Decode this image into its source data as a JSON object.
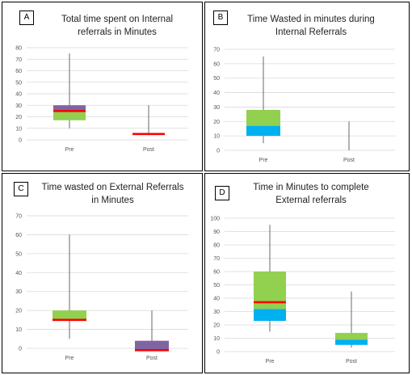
{
  "chart_data": [
    {
      "type": "boxplot",
      "panel_label": "A",
      "title": "Total time spent on Internal\nreferrals in Minutes",
      "ylim": [
        0,
        80
      ],
      "yticks": [
        0,
        10,
        20,
        30,
        40,
        50,
        60,
        70,
        80
      ],
      "categories": [
        "Pre",
        "Post"
      ],
      "boxes": [
        {
          "category": "Pre",
          "min": 10,
          "q1": 17,
          "median": 25,
          "q3": 30,
          "max": 75,
          "lower_color": "#92D050",
          "upper_color": "#8064A2",
          "median_color": "#FF0000"
        },
        {
          "category": "Post",
          "min": 4,
          "q1": 5,
          "median": 5,
          "q3": 6,
          "max": 30,
          "lower_color": "#92D050",
          "upper_color": "#8064A2",
          "median_color": "#FF0000"
        }
      ]
    },
    {
      "type": "boxplot",
      "panel_label": "B",
      "title": "Time Wasted in minutes during\nInternal Referrals",
      "ylim": [
        0,
        70
      ],
      "yticks": [
        0,
        10,
        20,
        30,
        40,
        50,
        60,
        70
      ],
      "categories": [
        "Pre",
        "Post"
      ],
      "boxes": [
        {
          "category": "Pre",
          "min": 5,
          "q1": 10,
          "median": 17,
          "q3": 28,
          "max": 65,
          "lower_color": "#00B0F0",
          "upper_color": "#92D050",
          "median_color": null
        },
        {
          "category": "Post",
          "min": 0,
          "q1": 0,
          "median": 0,
          "q3": 0,
          "max": 20,
          "lower_color": "#00B0F0",
          "upper_color": "#92D050",
          "median_color": null
        }
      ]
    },
    {
      "type": "boxplot",
      "panel_label": "C",
      "title": "Time wasted on External Referrals\nin Minutes",
      "ylim": [
        0,
        70
      ],
      "yticks": [
        0,
        10,
        20,
        30,
        40,
        50,
        60,
        70
      ],
      "categories": [
        "Pre",
        "Post"
      ],
      "boxes": [
        {
          "category": "Pre",
          "min": 5,
          "q1": 15,
          "median": 15,
          "q3": 20,
          "max": 60,
          "lower_color": "#92D050",
          "upper_color": "#92D050",
          "median_color": "#FF0000"
        },
        {
          "category": "Post",
          "min": -1,
          "q1": -1,
          "median": -1,
          "q3": 4,
          "max": 20,
          "lower_color": "#8064A2",
          "upper_color": "#8064A2",
          "median_color": "#FF0000"
        }
      ]
    },
    {
      "type": "boxplot",
      "panel_label": "D",
      "title": "Time in Minutes to complete\nExternal referrals",
      "ylim": [
        0,
        100
      ],
      "yticks": [
        0,
        10,
        20,
        30,
        40,
        50,
        60,
        70,
        80,
        90,
        100
      ],
      "categories": [
        "Pre",
        "Post"
      ],
      "boxes": [
        {
          "category": "Pre",
          "min": 15,
          "q1": 23,
          "median": 32,
          "q3": 60,
          "max": 95,
          "lower_color": "#00B0F0",
          "upper_color": "#92D050",
          "median_color": "#FF0000",
          "red_line": 37
        },
        {
          "category": "Post",
          "min": 3,
          "q1": 5,
          "median": 9,
          "q3": 14,
          "max": 45,
          "lower_color": "#00B0F0",
          "upper_color": "#92D050",
          "median_color": null
        }
      ]
    }
  ]
}
